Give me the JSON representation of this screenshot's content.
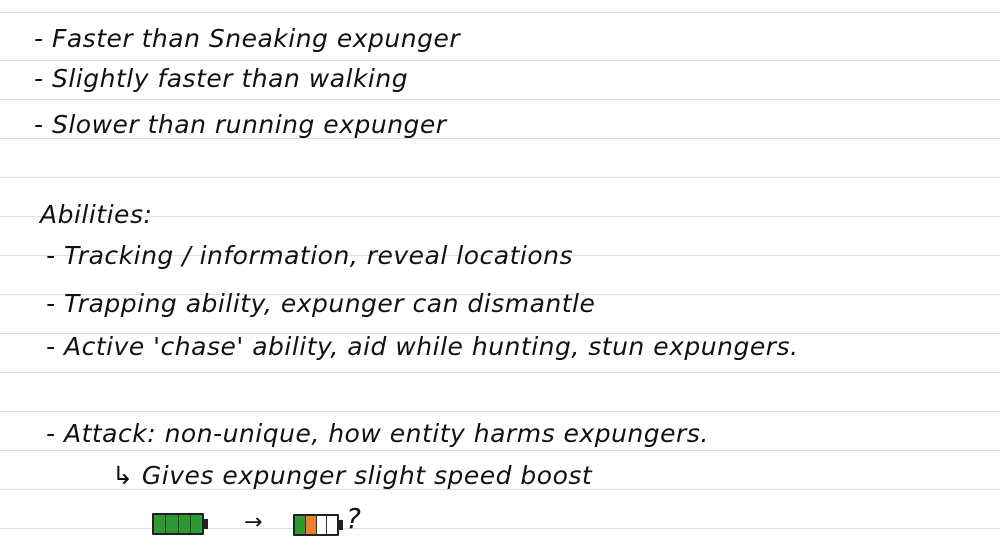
{
  "notes": {
    "speed": [
      "- Faster than Sneaking expunger",
      "- Slightly faster than walking",
      "- Slower than running expunger"
    ],
    "abilities_heading": "Abilities:",
    "abilities": [
      "- Tracking / information, reveal locations",
      "- Trapping ability, expunger can dismantle",
      "- Active 'chase' ability, aid while hunting, stun expungers."
    ],
    "attack": "- Attack: non-unique, how entity harms expungers.",
    "attack_sub": "↳ Gives expunger slight speed boost",
    "arrow": "→",
    "question_mark": "?"
  },
  "sketch": {
    "battery_full_cells": [
      "green",
      "green",
      "green",
      "green"
    ],
    "battery_low_cells": [
      "green",
      "orange",
      "empty",
      "empty"
    ],
    "colors": {
      "green": "#2f9a35",
      "orange": "#e8822a",
      "ruled_line": "#cfe3ee",
      "ink": "#111111"
    }
  }
}
